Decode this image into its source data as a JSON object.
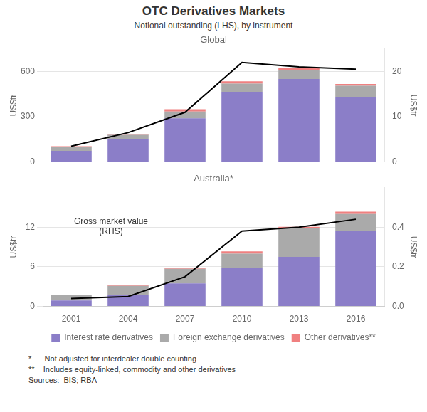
{
  "title": "OTC Derivatives Markets",
  "subtitle": "Notional outstanding (LHS), by instrument",
  "footnotes": [
    "*      Not adjusted for interdealer double counting",
    "**    Includes equity-linked, commodity and other derivatives",
    "Sources:  BIS; RBA"
  ],
  "chart_data": [
    {
      "type": "bar",
      "title": "Global",
      "stacked": true,
      "grid": true,
      "tick_labels": "y",
      "categories": [
        2001,
        2004,
        2007,
        2010,
        2013,
        2016
      ],
      "ylabel": "US$tr",
      "y2label": "US$tr",
      "ylim": [
        0,
        750
      ],
      "yticks": [
        0,
        300,
        600
      ],
      "y2lim": [
        0,
        25
      ],
      "y2ticks": [
        0,
        10,
        20
      ],
      "series": [
        {
          "name": "Interest rate derivatives",
          "color": "#8B7EC8",
          "values": [
            75,
            150,
            290,
            465,
            550,
            430
          ]
        },
        {
          "name": "Foreign exchange derivatives",
          "color": "#AAAAAA",
          "values": [
            25,
            30,
            45,
            55,
            60,
            75
          ]
        },
        {
          "name": "Other derivatives**",
          "color": "#F08080",
          "values": [
            5,
            8,
            15,
            15,
            15,
            12
          ]
        },
        {
          "type": "line",
          "axis": "y2",
          "color": "#000000",
          "values": [
            3.5,
            6.5,
            11,
            22,
            21,
            20.5
          ]
        }
      ]
    },
    {
      "type": "bar",
      "title": "Australia*",
      "stacked": true,
      "grid": true,
      "legend": "bottom",
      "annotation": "Gross market value\n(RHS)",
      "categories": [
        2001,
        2004,
        2007,
        2010,
        2013,
        2016
      ],
      "ylabel": "US$tr",
      "y2label": "US$tr",
      "ylim": [
        0,
        18
      ],
      "yticks": [
        0,
        6,
        12
      ],
      "y2lim": [
        0,
        0.6
      ],
      "y2ticks": [
        {
          "value": 0,
          "label": "0.0"
        },
        0.2,
        0.4
      ],
      "series": [
        {
          "name": "Interest rate derivatives",
          "color": "#8B7EC8",
          "values": [
            0.9,
            1.8,
            3.5,
            5.8,
            7.5,
            11.5
          ]
        },
        {
          "name": "Foreign exchange derivatives",
          "color": "#AAAAAA",
          "values": [
            0.8,
            1.3,
            2.2,
            2.2,
            4.3,
            2.5
          ]
        },
        {
          "name": "Other derivatives**",
          "color": "#F08080",
          "values": [
            0.06,
            0.12,
            0.15,
            0.35,
            0.25,
            0.35
          ]
        },
        {
          "type": "line",
          "axis": "y2",
          "color": "#000000",
          "values": [
            0.04,
            0.05,
            0.15,
            0.38,
            0.4,
            0.44
          ]
        }
      ]
    }
  ]
}
